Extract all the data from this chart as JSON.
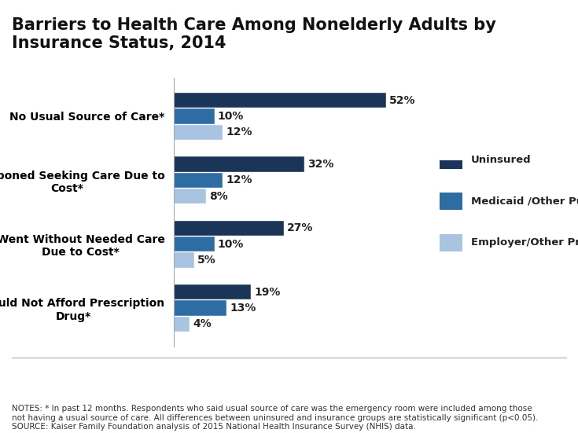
{
  "title": "Barriers to Health Care Among Nonelderly Adults by\nInsurance Status, 2014",
  "categories": [
    "No Usual Source of Care*",
    "Postponed Seeking Care Due to\nCost*",
    "Went Without Needed Care\nDue to Cost*",
    "Could Not Afford Prescription\nDrug*"
  ],
  "series": {
    "Uninsured": [
      52,
      32,
      27,
      19
    ],
    "Medicaid /Other Public": [
      10,
      12,
      10,
      13
    ],
    "Employer/Other Private": [
      12,
      8,
      5,
      4
    ]
  },
  "colors": {
    "Uninsured": "#1a3557",
    "Medicaid /Other Public": "#2e6da4",
    "Employer/Other Private": "#a8c4e0"
  },
  "notes": "NOTES: * In past 12 months. Respondents who said usual source of care was the emergency room were included among those\nnot having a usual source of care. All differences between uninsured and insurance groups are statistically significant (p<0.05).\nSOURCE: Kaiser Family Foundation analysis of 2015 National Health Insurance Survey (NHIS) data.",
  "bar_height": 0.25,
  "xlim": [
    0,
    65
  ],
  "background_color": "#ffffff",
  "label_fontsize": 10,
  "tick_fontsize": 10,
  "title_fontsize": 15
}
